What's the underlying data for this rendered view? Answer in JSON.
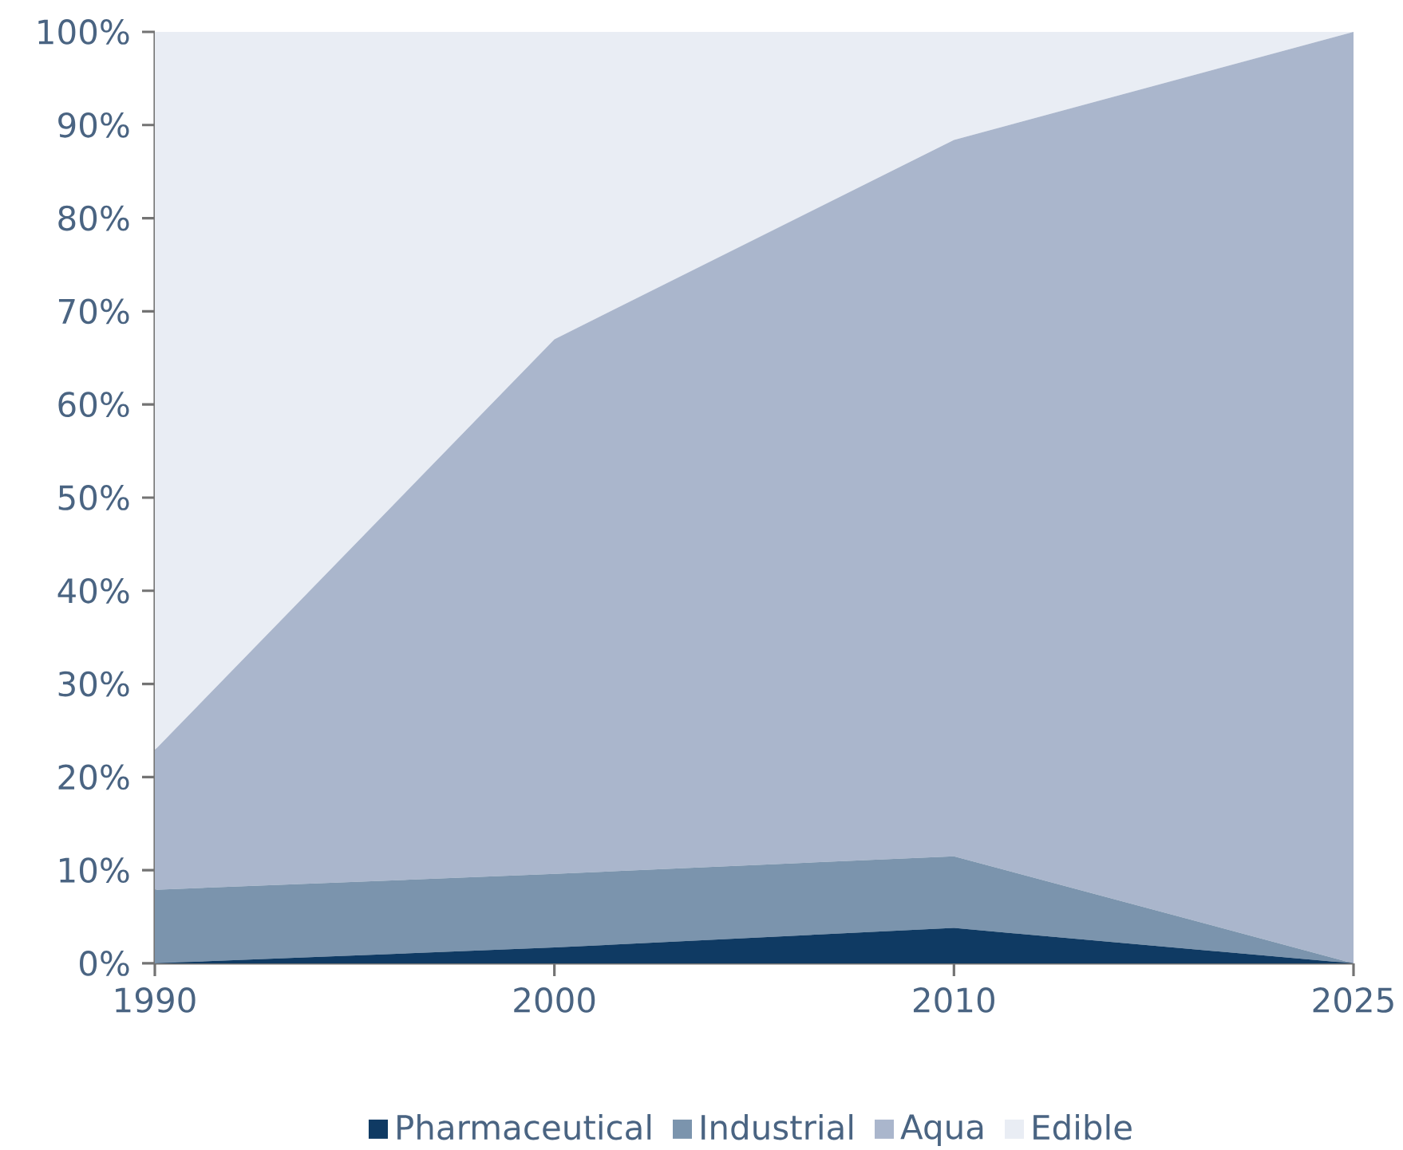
{
  "chart_data": {
    "type": "area",
    "stacked": true,
    "categories": [
      "1990",
      "2000",
      "2010",
      "2025"
    ],
    "series": [
      {
        "name": "Pharmaceutical",
        "color": "#0f3a63",
        "values": [
          0,
          1.7,
          3.8,
          0
        ]
      },
      {
        "name": "Industrial",
        "color": "#7b94ad",
        "values": [
          7.9,
          7.9,
          7.7,
          0
        ]
      },
      {
        "name": "Aqua",
        "color": "#aab6cc",
        "values": [
          15,
          57.4,
          76.9,
          100
        ]
      },
      {
        "name": "Edible",
        "color": "#e9edf4",
        "values": [
          77.1,
          33,
          11.6,
          0
        ]
      }
    ],
    "ylim": [
      0,
      100
    ],
    "yticks": [
      {
        "value": 0,
        "label": "0%"
      },
      {
        "value": 10,
        "label": "10%"
      },
      {
        "value": 20,
        "label": "20%"
      },
      {
        "value": 30,
        "label": "30%"
      },
      {
        "value": 40,
        "label": "40%"
      },
      {
        "value": 50,
        "label": "50%"
      },
      {
        "value": 60,
        "label": "60%"
      },
      {
        "value": 70,
        "label": "70%"
      },
      {
        "value": 80,
        "label": "80%"
      },
      {
        "value": 90,
        "label": "90%"
      },
      {
        "value": 100,
        "label": "100%"
      }
    ],
    "grid": false,
    "legend": "bottom"
  }
}
